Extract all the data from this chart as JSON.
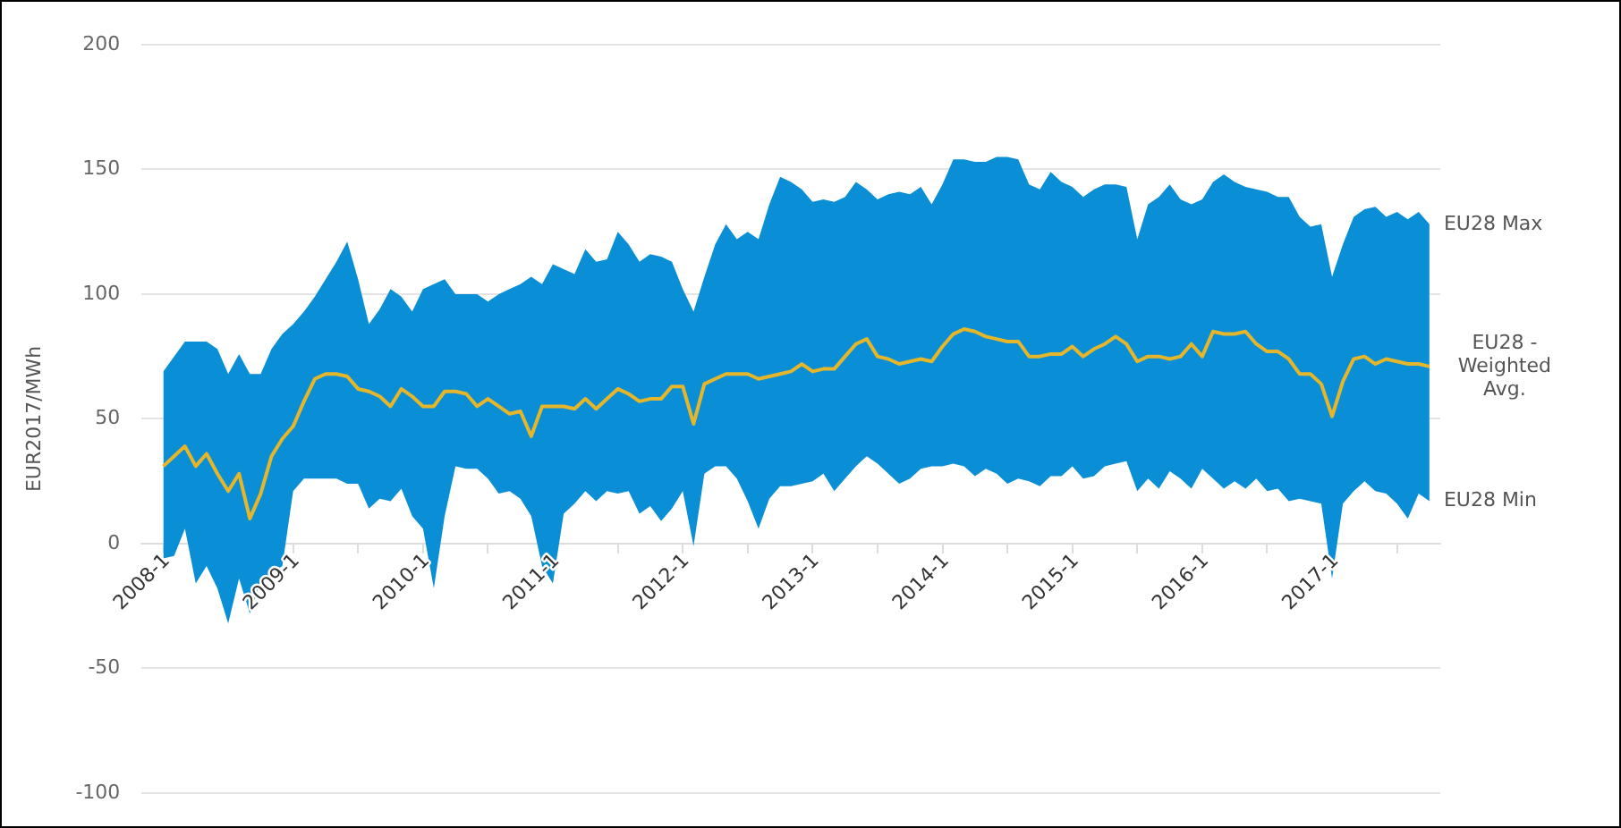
{
  "chart_data": {
    "type": "line",
    "ylabel": "EUR2017/MWh",
    "x": [
      "2008-01",
      "2008-02",
      "2008-03",
      "2008-04",
      "2008-05",
      "2008-06",
      "2008-07",
      "2008-08",
      "2008-09",
      "2008-10",
      "2008-11",
      "2008-12",
      "2009-01",
      "2009-02",
      "2009-03",
      "2009-04",
      "2009-05",
      "2009-06",
      "2009-07",
      "2009-08",
      "2009-09",
      "2009-10",
      "2009-11",
      "2009-12",
      "2010-01",
      "2010-02",
      "2010-03",
      "2010-04",
      "2010-05",
      "2010-06",
      "2010-07",
      "2010-08",
      "2010-09",
      "2010-10",
      "2010-11",
      "2010-12",
      "2011-01",
      "2011-02",
      "2011-03",
      "2011-04",
      "2011-05",
      "2011-06",
      "2011-07",
      "2011-08",
      "2011-09",
      "2011-10",
      "2011-11",
      "2011-12",
      "2012-01",
      "2012-02",
      "2012-03",
      "2012-04",
      "2012-05",
      "2012-06",
      "2012-07",
      "2012-08",
      "2012-09",
      "2012-10",
      "2012-11",
      "2012-12",
      "2013-01",
      "2013-02",
      "2013-03",
      "2013-04",
      "2013-05",
      "2013-06",
      "2013-07",
      "2013-08",
      "2013-09",
      "2013-10",
      "2013-11",
      "2013-12",
      "2014-01",
      "2014-02",
      "2014-03",
      "2014-04",
      "2014-05",
      "2014-06",
      "2014-07",
      "2014-08",
      "2014-09",
      "2014-10",
      "2014-11",
      "2014-12",
      "2015-01",
      "2015-02",
      "2015-03",
      "2015-04",
      "2015-05",
      "2015-06",
      "2015-07",
      "2015-08",
      "2015-09",
      "2015-10",
      "2015-11",
      "2015-12",
      "2016-01",
      "2016-02",
      "2016-03",
      "2016-04",
      "2016-05",
      "2016-06",
      "2016-07",
      "2016-08",
      "2016-09",
      "2016-10",
      "2016-11",
      "2016-12",
      "2017-01",
      "2017-02",
      "2017-03",
      "2017-04",
      "2017-05",
      "2017-06",
      "2017-07",
      "2017-08",
      "2017-09",
      "2017-10"
    ],
    "series": [
      {
        "name": "EU28 - Weighted Avg.",
        "color": "#e6b62a",
        "values": [
          31,
          35,
          39,
          31,
          36,
          28,
          21,
          28,
          10,
          20,
          35,
          42,
          47,
          57,
          66,
          68,
          68,
          67,
          62,
          61,
          59,
          55,
          62,
          59,
          55,
          55,
          61,
          61,
          60,
          55,
          58,
          55,
          52,
          53,
          43,
          55,
          55,
          55,
          54,
          58,
          54,
          58,
          62,
          60,
          57,
          58,
          58,
          63,
          63,
          48,
          64,
          66,
          68,
          68,
          68,
          66,
          67,
          68,
          69,
          72,
          69,
          70,
          70,
          75,
          80,
          82,
          75,
          74,
          72,
          73,
          74,
          73,
          79,
          84,
          86,
          85,
          83,
          82,
          81,
          81,
          75,
          75,
          76,
          76,
          79,
          75,
          78,
          80,
          83,
          80,
          73,
          75,
          75,
          74,
          75,
          80,
          75,
          85,
          84,
          84,
          85,
          80,
          77,
          77,
          74,
          68,
          68,
          64,
          51,
          65,
          74,
          75,
          72,
          74,
          73,
          72,
          72,
          71
        ],
        "lower": [
          -6,
          -5,
          6,
          -16,
          -9,
          -18,
          -32,
          -14,
          -28,
          -15,
          -12,
          -9,
          21,
          26,
          26,
          26,
          26,
          24,
          24,
          14,
          18,
          17,
          22,
          11,
          6,
          -18,
          11,
          31,
          30,
          30,
          26,
          20,
          21,
          18,
          11,
          -9,
          -16,
          12,
          16,
          21,
          17,
          21,
          20,
          21,
          12,
          15,
          9,
          14,
          21,
          -1,
          28,
          31,
          31,
          26,
          17,
          6,
          18,
          23,
          23,
          24,
          25,
          28,
          21,
          26,
          31,
          35,
          32,
          28,
          24,
          26,
          30,
          31,
          31,
          32,
          31,
          27,
          30,
          28,
          24,
          26,
          25,
          23,
          27,
          27,
          31,
          26,
          27,
          31,
          32,
          33,
          21,
          26,
          22,
          29,
          26,
          22,
          30,
          26,
          22,
          25,
          22,
          26,
          21,
          22,
          17,
          18,
          17,
          16,
          -14,
          16,
          21,
          25,
          21,
          20,
          16,
          10,
          20,
          17
        ],
        "upper": [
          69,
          75,
          81,
          81,
          81,
          78,
          68,
          76,
          68,
          68,
          78,
          84,
          88,
          93,
          99,
          106,
          113,
          121,
          106,
          88,
          94,
          102,
          99,
          93,
          102,
          104,
          106,
          100,
          100,
          100,
          97,
          100,
          102,
          104,
          107,
          104,
          112,
          110,
          108,
          118,
          113,
          114,
          125,
          120,
          113,
          116,
          115,
          113,
          102,
          93,
          107,
          120,
          128,
          122,
          125,
          122,
          136,
          147,
          145,
          142,
          137,
          138,
          137,
          139,
          145,
          142,
          138,
          140,
          141,
          140,
          143,
          136,
          144,
          154,
          154,
          153,
          153,
          155,
          155,
          154,
          144,
          142,
          149,
          145,
          143,
          139,
          142,
          144,
          144,
          143,
          122,
          136,
          139,
          144,
          138,
          136,
          138,
          145,
          148,
          145,
          143,
          142,
          141,
          139,
          139,
          131,
          127,
          128,
          107,
          120,
          131,
          134,
          135,
          131,
          133,
          130,
          133,
          128
        ]
      }
    ],
    "xlim": [
      "2007-11",
      "2017-11"
    ],
    "xticks": [
      {
        "value": "2008-01",
        "label": "2008-1"
      },
      {
        "value": "2008-07",
        "label": null
      },
      {
        "value": "2009-01",
        "label": "2009-1"
      },
      {
        "value": "2009-07",
        "label": null
      },
      {
        "value": "2010-01",
        "label": "2010-1"
      },
      {
        "value": "2010-07",
        "label": null
      },
      {
        "value": "2011-01",
        "label": "2011-1"
      },
      {
        "value": "2011-07",
        "label": null
      },
      {
        "value": "2012-01",
        "label": "2012-1"
      },
      {
        "value": "2012-07",
        "label": null
      },
      {
        "value": "2013-01",
        "label": "2013-1"
      },
      {
        "value": "2013-07",
        "label": null
      },
      {
        "value": "2014-01",
        "label": "2014-1"
      },
      {
        "value": "2014-07",
        "label": null
      },
      {
        "value": "2015-01",
        "label": "2015-1"
      },
      {
        "value": "2015-07",
        "label": null
      },
      {
        "value": "2016-01",
        "label": "2016-1"
      },
      {
        "value": "2016-07",
        "label": null
      },
      {
        "value": "2017-01",
        "label": "2017-1"
      },
      {
        "value": "2017-07",
        "label": null
      }
    ],
    "ylim": [
      -100,
      200
    ],
    "yticks": [
      -100,
      -50,
      0,
      50,
      100,
      150,
      200
    ],
    "grid": "y",
    "legend": false,
    "marker": "none",
    "line_style": "solid",
    "annotations": [
      {
        "text": "EU28 Max",
        "x": "2017-10",
        "y": 128
      },
      {
        "text": "EU28 Min",
        "x": "2017-10",
        "y": 17
      }
    ]
  }
}
